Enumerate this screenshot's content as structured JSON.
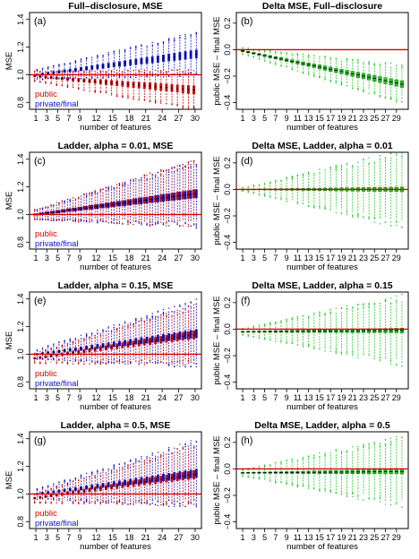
{
  "colors": {
    "public": "#cc0000",
    "private": "#1010c8",
    "delta": "#22cc22",
    "delta_border": "#116611",
    "refline": "#dd0000",
    "axis": "#000000"
  },
  "chart_data": [
    {
      "id": "a",
      "type": "boxplot",
      "panel_label": "(a)",
      "title": "Full–disclosure, MSE",
      "xlabel": "number of features",
      "ylabel": "MSE",
      "x_ticks": [
        1,
        3,
        5,
        7,
        9,
        12,
        15,
        18,
        21,
        24,
        27,
        30
      ],
      "y_ticks": [
        "0.8",
        "1.0",
        "1.2",
        "1.4"
      ],
      "y_tick_values": [
        0.8,
        1.0,
        1.2,
        1.4
      ],
      "ylim": [
        0.75,
        1.45
      ],
      "refline": 1.0,
      "legend": [
        "public",
        "private/final"
      ],
      "legend_position": "bottom-left",
      "series": [
        {
          "name": "public",
          "color_key": "public",
          "median_start": 0.99,
          "median_end": 0.89,
          "iqr_start": 0.012,
          "iqr_end": 0.06,
          "whisker_start": 0.03,
          "whisker_end": 0.12
        },
        {
          "name": "private/final",
          "color_key": "private",
          "median_start": 1.0,
          "median_end": 1.15,
          "iqr_start": 0.012,
          "iqr_end": 0.06,
          "whisker_start": 0.03,
          "whisker_end": 0.13
        }
      ]
    },
    {
      "id": "b",
      "type": "boxplot",
      "panel_label": "(b)",
      "title": "Delta MSE, Full–disclosure",
      "xlabel": "number of features",
      "ylabel": "public MSE – final MSE",
      "x_ticks": [
        1,
        3,
        5,
        7,
        9,
        11,
        13,
        15,
        17,
        19,
        21,
        23,
        25,
        27,
        29
      ],
      "y_ticks": [
        "−0.4",
        "−0.2",
        "0.0",
        "0.2"
      ],
      "y_tick_values": [
        -0.4,
        -0.2,
        0.0,
        0.2
      ],
      "ylim": [
        -0.45,
        0.28
      ],
      "refline": 0.0,
      "series": [
        {
          "name": "",
          "color_key": "delta",
          "median_start": -0.01,
          "median_end": -0.26,
          "iqr_start": 0.01,
          "iqr_end": 0.05,
          "whisker_start": 0.02,
          "whisker_end": 0.12
        }
      ]
    },
    {
      "id": "c",
      "type": "boxplot",
      "panel_label": "(c)",
      "title": "Ladder, alpha = 0.01, MSE",
      "xlabel": "number of features",
      "ylabel": "MSE",
      "x_ticks": [
        1,
        3,
        5,
        7,
        9,
        12,
        15,
        18,
        21,
        24,
        27,
        30
      ],
      "y_ticks": [
        "0.8",
        "1.0",
        "1.2",
        "1.4"
      ],
      "y_tick_values": [
        0.8,
        1.0,
        1.2,
        1.4
      ],
      "ylim": [
        0.75,
        1.45
      ],
      "refline": 1.0,
      "legend": [
        "public",
        "private/final"
      ],
      "legend_position": "bottom-left",
      "series": [
        {
          "name": "public",
          "color_key": "public",
          "median_start": 1.0,
          "median_end": 1.15,
          "iqr_start": 0.012,
          "iqr_end": 0.06,
          "whisker_start": 0.03,
          "whisker_end": 0.2
        },
        {
          "name": "private/final",
          "color_key": "private",
          "median_start": 1.0,
          "median_end": 1.15,
          "iqr_start": 0.012,
          "iqr_end": 0.06,
          "whisker_start": 0.03,
          "whisker_end": 0.2
        }
      ]
    },
    {
      "id": "d",
      "type": "boxplot",
      "panel_label": "(d)",
      "title": "Delta MSE, Ladder, alpha = 0.01",
      "xlabel": "number of features",
      "ylabel": "public MSE – final MSE",
      "x_ticks": [
        1,
        3,
        5,
        7,
        9,
        11,
        13,
        15,
        17,
        19,
        21,
        23,
        25,
        27,
        29
      ],
      "y_ticks": [
        "−0.4",
        "−0.2",
        "0.0",
        "0.2"
      ],
      "y_tick_values": [
        -0.4,
        -0.2,
        0.0,
        0.2
      ],
      "ylim": [
        -0.45,
        0.28
      ],
      "refline": 0.0,
      "series": [
        {
          "name": "",
          "color_key": "delta",
          "median_start": 0.0,
          "median_end": 0.0,
          "iqr_start": 0.004,
          "iqr_end": 0.035,
          "whisker_start": 0.01,
          "whisker_end": 0.24
        }
      ]
    },
    {
      "id": "e",
      "type": "boxplot",
      "panel_label": "(e)",
      "title": "Ladder, alpha = 0.15, MSE",
      "xlabel": "number of features",
      "ylabel": "MSE",
      "x_ticks": [
        1,
        3,
        5,
        7,
        9,
        12,
        15,
        18,
        21,
        24,
        27,
        30
      ],
      "y_ticks": [
        "0.8",
        "1.0",
        "1.2",
        "1.4"
      ],
      "y_tick_values": [
        0.8,
        1.0,
        1.2,
        1.4
      ],
      "ylim": [
        0.75,
        1.45
      ],
      "refline": 1.0,
      "legend": [
        "public",
        "private/final"
      ],
      "legend_position": "bottom-left",
      "series": [
        {
          "name": "public",
          "color_key": "public",
          "median_start": 0.97,
          "median_end": 1.14,
          "iqr_start": 0.012,
          "iqr_end": 0.06,
          "whisker_start": 0.03,
          "whisker_end": 0.18
        },
        {
          "name": "private/final",
          "color_key": "private",
          "median_start": 1.0,
          "median_end": 1.15,
          "iqr_start": 0.012,
          "iqr_end": 0.06,
          "whisker_start": 0.03,
          "whisker_end": 0.2
        }
      ]
    },
    {
      "id": "f",
      "type": "boxplot",
      "panel_label": "(f)",
      "title": "Delta MSE, Ladder, alpha = 0.15",
      "xlabel": "number of features",
      "ylabel": "public MSE – final MSE",
      "x_ticks": [
        1,
        3,
        5,
        7,
        9,
        11,
        13,
        15,
        17,
        19,
        21,
        23,
        25,
        27,
        29
      ],
      "y_ticks": [
        "−0.4",
        "−0.2",
        "0.0",
        "0.2"
      ],
      "y_tick_values": [
        -0.4,
        -0.2,
        0.0,
        0.2
      ],
      "ylim": [
        -0.45,
        0.28
      ],
      "refline": 0.0,
      "series": [
        {
          "name": "",
          "color_key": "delta",
          "median_start": -0.02,
          "median_end": -0.01,
          "iqr_start": 0.006,
          "iqr_end": 0.035,
          "whisker_start": 0.02,
          "whisker_end": 0.22
        }
      ]
    },
    {
      "id": "g",
      "type": "boxplot",
      "panel_label": "(g)",
      "title": "Ladder, alpha = 0.5, MSE",
      "xlabel": "number of features",
      "ylabel": "MSE",
      "x_ticks": [
        1,
        3,
        5,
        7,
        9,
        12,
        15,
        18,
        21,
        24,
        27,
        30
      ],
      "y_ticks": [
        "0.8",
        "1.0",
        "1.2",
        "1.4"
      ],
      "y_tick_values": [
        0.8,
        1.0,
        1.2,
        1.4
      ],
      "ylim": [
        0.75,
        1.45
      ],
      "refline": 1.0,
      "legend": [
        "public",
        "private/final"
      ],
      "legend_position": "bottom-left",
      "series": [
        {
          "name": "public",
          "color_key": "public",
          "median_start": 0.97,
          "median_end": 1.14,
          "iqr_start": 0.012,
          "iqr_end": 0.06,
          "whisker_start": 0.03,
          "whisker_end": 0.18
        },
        {
          "name": "private/final",
          "color_key": "private",
          "median_start": 1.0,
          "median_end": 1.15,
          "iqr_start": 0.012,
          "iqr_end": 0.06,
          "whisker_start": 0.03,
          "whisker_end": 0.2
        }
      ]
    },
    {
      "id": "h",
      "type": "boxplot",
      "panel_label": "(h)",
      "title": "Delta MSE, Ladder, alpha = 0.5",
      "xlabel": "number of features",
      "ylabel": "public MSE – final MSE",
      "x_ticks": [
        1,
        3,
        5,
        7,
        9,
        11,
        13,
        15,
        17,
        19,
        21,
        23,
        25,
        27,
        29
      ],
      "y_ticks": [
        "−0.4",
        "−0.2",
        "0.0",
        "0.2"
      ],
      "y_tick_values": [
        -0.4,
        -0.2,
        0.0,
        0.2
      ],
      "ylim": [
        -0.45,
        0.28
      ],
      "refline": 0.0,
      "series": [
        {
          "name": "",
          "color_key": "delta",
          "median_start": -0.03,
          "median_end": -0.02,
          "iqr_start": 0.006,
          "iqr_end": 0.035,
          "whisker_start": 0.02,
          "whisker_end": 0.22
        }
      ]
    }
  ]
}
